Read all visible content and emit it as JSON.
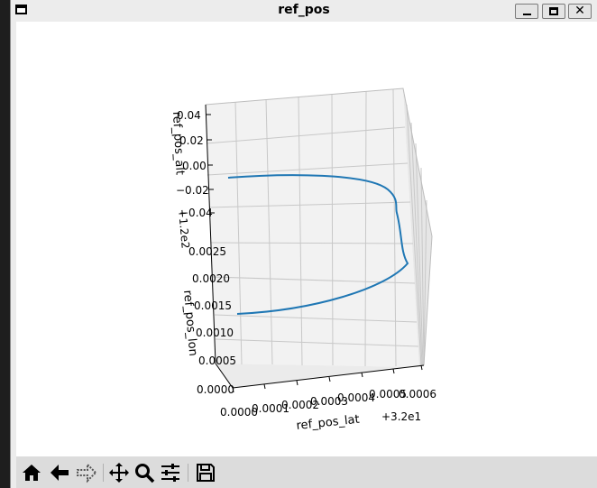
{
  "window": {
    "title": "ref_pos"
  },
  "plot": {
    "xlabel": "ref_pos_lat",
    "ylabel": "ref_pos_lon",
    "zlabel": "ref_pos_alt",
    "x_offset": "+3.2e1",
    "y_offset": "+1.2e2",
    "x_ticks": [
      "0.0000",
      "0.0001",
      "0.0002",
      "0.0003",
      "0.0004",
      "0.0005",
      "0.0006"
    ],
    "y_ticks": [
      "0.0000",
      "0.0005",
      "0.0010",
      "0.0015",
      "0.0020",
      "0.0025"
    ],
    "z_ticks": [
      "0.04",
      "0.02",
      "0.00",
      "−0.02",
      "−0.04"
    ],
    "line_color": "#1f77b4"
  },
  "toolbar": {
    "buttons": [
      "home-icon",
      "back-icon",
      "forward-icon",
      "pan-icon",
      "zoom-icon",
      "configure-subplots-icon",
      "save-icon"
    ]
  }
}
